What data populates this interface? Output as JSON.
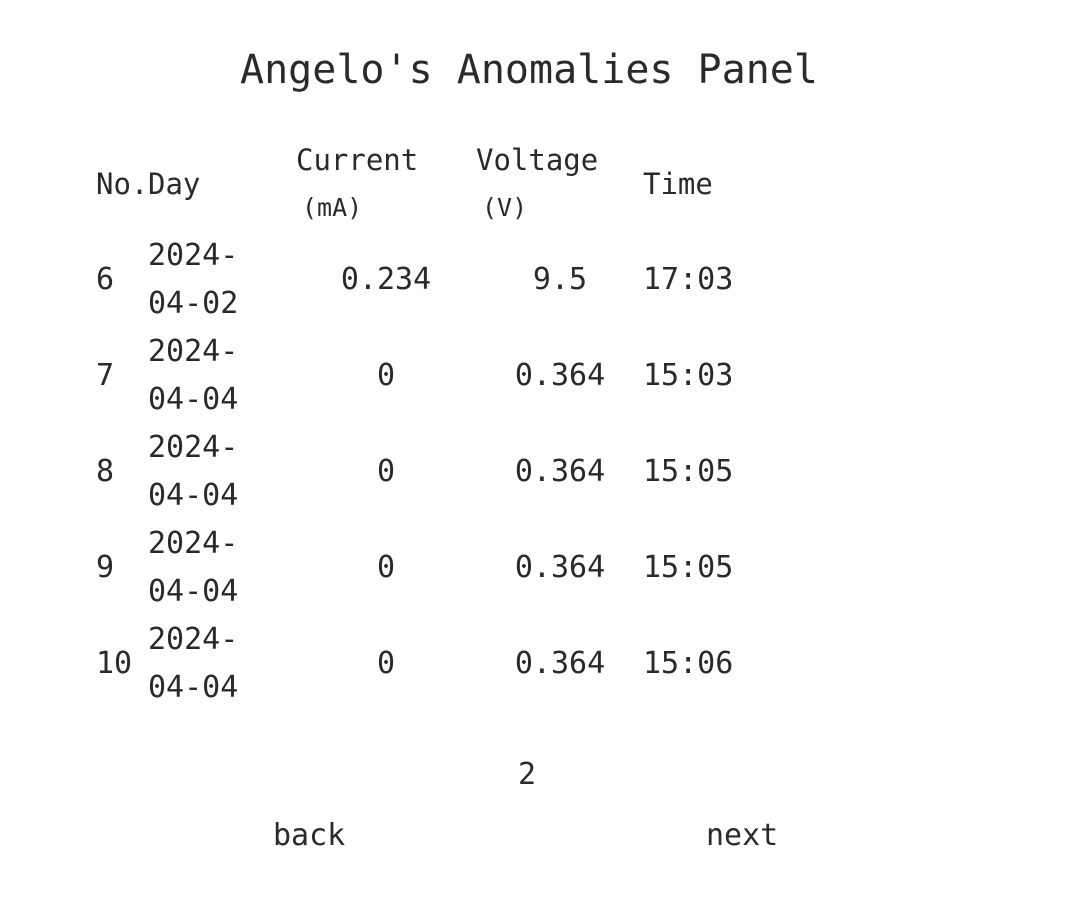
{
  "title": "Angelo's Anomalies Panel",
  "table": {
    "headers": {
      "no": "No.",
      "day": "Day",
      "current_top": "Current",
      "current_unit": "(mA)",
      "voltage_top": "Voltage",
      "voltage_unit": "(V)",
      "time": "Time"
    },
    "rows": [
      {
        "no": "6",
        "day_line1": "2024-",
        "day_line2": "04-02",
        "current": "0.234",
        "voltage": "9.5",
        "time": "17:03"
      },
      {
        "no": "7",
        "day_line1": "2024-",
        "day_line2": "04-04",
        "current": "0",
        "voltage": "0.364",
        "time": "15:03"
      },
      {
        "no": "8",
        "day_line1": "2024-",
        "day_line2": "04-04",
        "current": "0",
        "voltage": "0.364",
        "time": "15:05"
      },
      {
        "no": "9",
        "day_line1": "2024-",
        "day_line2": "04-04",
        "current": "0",
        "voltage": "0.364",
        "time": "15:05"
      },
      {
        "no": "10",
        "day_line1": "2024-",
        "day_line2": "04-04",
        "current": "0",
        "voltage": "0.364",
        "time": "15:06"
      }
    ]
  },
  "pagination": {
    "page": "2",
    "back_label": "back",
    "next_label": "next"
  }
}
